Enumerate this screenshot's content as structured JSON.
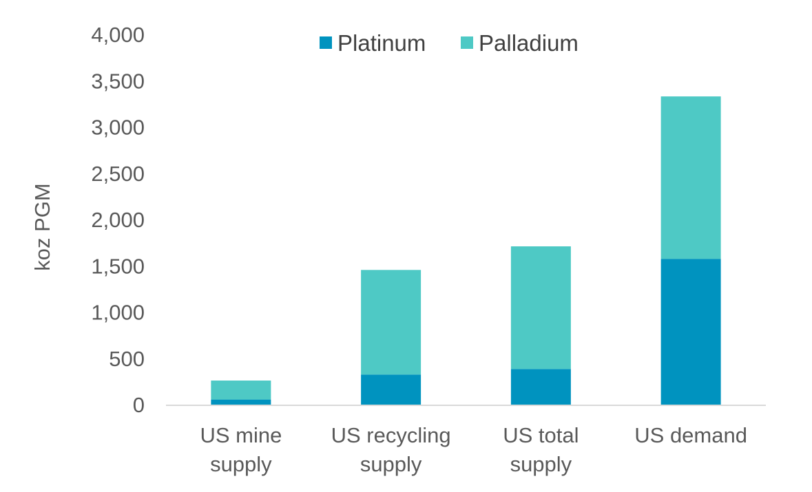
{
  "chart_data": {
    "type": "bar",
    "stacked": true,
    "categories": [
      [
        "US mine",
        "supply"
      ],
      [
        "US recycling",
        "supply"
      ],
      [
        "US total",
        "supply"
      ],
      [
        "US demand"
      ]
    ],
    "series": [
      {
        "name": "Platinum",
        "color": "#0093BF",
        "values": [
          55,
          325,
          385,
          1575
        ]
      },
      {
        "name": "Palladium",
        "color": "#4EC9C5",
        "values": [
          205,
          1130,
          1325,
          1755
        ]
      }
    ],
    "ylabel": "koz PGM",
    "ylim": [
      0,
      4000
    ],
    "yticks": [
      0,
      500,
      1000,
      1500,
      2000,
      2500,
      3000,
      3500,
      4000
    ],
    "ytick_labels": [
      "0",
      "500",
      "1,000",
      "1,500",
      "2,000",
      "2,500",
      "3,000",
      "3,500",
      "4,000"
    ],
    "grid": false,
    "legend_position": "top-center"
  }
}
